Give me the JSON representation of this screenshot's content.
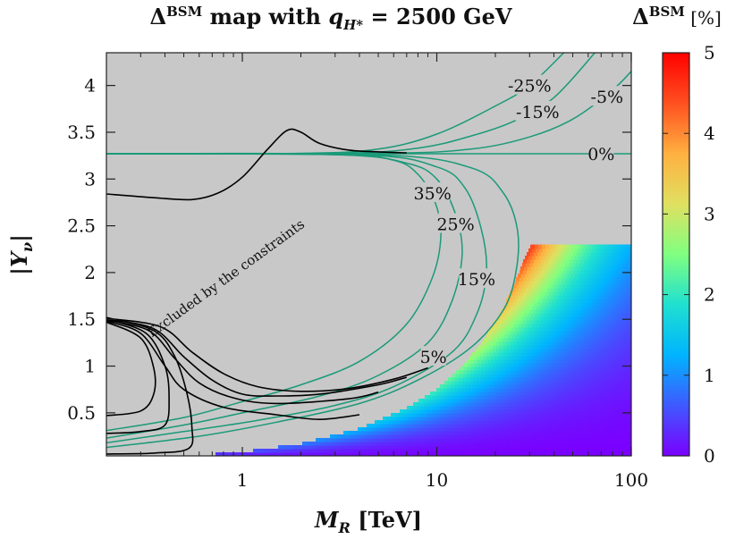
{
  "chart_data": {
    "type": "heatmap",
    "title": {
      "main": "Δ",
      "sup": "BSM",
      "rest": " map with ",
      "q": "q",
      "sub": "H*",
      "eq": " = 2500 GeV"
    },
    "xlabel": {
      "main": "M",
      "sub": "R",
      "rest": " [TeV]"
    },
    "ylabel": {
      "main": "|Y",
      "sub": "ν",
      "rest": "|"
    },
    "x_scale": "log",
    "xlim": [
      0.2,
      100
    ],
    "ylim": [
      0.04,
      4.35
    ],
    "x_ticks": [
      {
        "v": 1,
        "label": "1"
      },
      {
        "v": 10,
        "label": "10"
      },
      {
        "v": 100,
        "label": "100"
      }
    ],
    "y_ticks": [
      {
        "v": 0.5,
        "label": "0.5"
      },
      {
        "v": 1,
        "label": "1"
      },
      {
        "v": 1.5,
        "label": "1.5"
      },
      {
        "v": 2,
        "label": "2"
      },
      {
        "v": 2.5,
        "label": "2.5"
      },
      {
        "v": 3,
        "label": "3"
      },
      {
        "v": 3.5,
        "label": "3.5"
      },
      {
        "v": 4,
        "label": "4"
      }
    ],
    "colorbar": {
      "label": {
        "main": "Δ",
        "sup": "BSM",
        "rest": " [%]"
      },
      "range": [
        0,
        5
      ],
      "ticks": [
        {
          "v": 0,
          "label": "0"
        },
        {
          "v": 1,
          "label": "1"
        },
        {
          "v": 2,
          "label": "2"
        },
        {
          "v": 3,
          "label": "3"
        },
        {
          "v": 4,
          "label": "4"
        },
        {
          "v": 5,
          "label": "5"
        }
      ],
      "colors": [
        "#7a00ff",
        "#3f59ff",
        "#00b4ff",
        "#1fe0d0",
        "#80ff80",
        "#e0e060",
        "#ffb040",
        "#ff5020",
        "#ff0000"
      ]
    },
    "allowed_region": {
      "boundary": [
        [
          0.55,
          0.04
        ],
        [
          1.0,
          0.08
        ],
        [
          2.0,
          0.17
        ],
        [
          4.0,
          0.33
        ],
        [
          7.0,
          0.55
        ],
        [
          10.0,
          0.75
        ],
        [
          14.0,
          1.02
        ],
        [
          18.0,
          1.32
        ],
        [
          22.0,
          1.62
        ],
        [
          26.0,
          1.95
        ],
        [
          29.0,
          2.2
        ],
        [
          31.0,
          2.3
        ]
      ],
      "y_top": 2.3,
      "x_right": 100
    },
    "excluded_label": "Excluded by the constraints",
    "contours_green": [
      {
        "label": "-25%",
        "label_at": [
          30,
          4.0
        ],
        "points": [
          [
            0.2,
            3.27
          ],
          [
            2,
            3.275
          ],
          [
            5,
            3.32
          ],
          [
            10,
            3.48
          ],
          [
            20,
            3.78
          ],
          [
            30,
            4.0
          ],
          [
            45,
            4.35
          ]
        ]
      },
      {
        "label": "-15%",
        "label_at": [
          33,
          3.72
        ],
        "points": [
          [
            0.2,
            3.27
          ],
          [
            3,
            3.275
          ],
          [
            8,
            3.33
          ],
          [
            15,
            3.46
          ],
          [
            25,
            3.62
          ],
          [
            40,
            3.87
          ],
          [
            65,
            4.35
          ]
        ]
      },
      {
        "label": "-5%",
        "label_at": [
          75,
          3.88
        ],
        "points": [
          [
            0.2,
            3.27
          ],
          [
            5,
            3.275
          ],
          [
            15,
            3.32
          ],
          [
            30,
            3.45
          ],
          [
            50,
            3.64
          ],
          [
            80,
            3.95
          ],
          [
            105,
            4.2
          ]
        ]
      },
      {
        "label": "0%",
        "label_at": [
          70,
          3.27
        ],
        "points": [
          [
            0.2,
            3.27
          ],
          [
            100,
            3.27
          ]
        ]
      },
      {
        "label": "35%",
        "label_at": [
          9.5,
          2.85
        ],
        "points": [
          [
            0.2,
            3.27
          ],
          [
            3,
            3.26
          ],
          [
            6,
            3.2
          ],
          [
            8,
            3.05
          ],
          [
            9.8,
            2.75
          ],
          [
            10.5,
            2.4
          ],
          [
            9.5,
            1.95
          ],
          [
            7,
            1.45
          ],
          [
            4,
            1.05
          ],
          [
            2,
            0.8
          ],
          [
            1,
            0.62
          ],
          [
            0.5,
            0.45
          ],
          [
            0.2,
            0.31
          ]
        ]
      },
      {
        "label": "25%",
        "label_at": [
          12.5,
          2.52
        ],
        "points": [
          [
            0.2,
            3.27
          ],
          [
            3,
            3.26
          ],
          [
            7,
            3.17
          ],
          [
            10,
            3.0
          ],
          [
            12.5,
            2.62
          ],
          [
            13.5,
            2.2
          ],
          [
            12,
            1.7
          ],
          [
            9,
            1.25
          ],
          [
            5,
            0.9
          ],
          [
            2.5,
            0.68
          ],
          [
            1,
            0.5
          ],
          [
            0.5,
            0.37
          ],
          [
            0.2,
            0.23
          ]
        ]
      },
      {
        "label": "15%",
        "label_at": [
          16,
          1.93
        ],
        "points": [
          [
            0.2,
            3.27
          ],
          [
            4,
            3.26
          ],
          [
            10,
            3.13
          ],
          [
            14,
            2.9
          ],
          [
            17,
            2.45
          ],
          [
            18,
            2.0
          ],
          [
            16,
            1.55
          ],
          [
            12,
            1.15
          ],
          [
            6,
            0.78
          ],
          [
            3,
            0.58
          ],
          [
            1.2,
            0.42
          ],
          [
            0.5,
            0.3
          ],
          [
            0.2,
            0.18
          ]
        ]
      },
      {
        "label": "5%",
        "label_at": [
          9.6,
          1.1
        ],
        "points": [
          [
            0.2,
            3.27
          ],
          [
            5,
            3.26
          ],
          [
            15,
            3.12
          ],
          [
            22,
            2.85
          ],
          [
            26,
            2.45
          ],
          [
            25.5,
            2.0
          ],
          [
            22,
            1.6
          ],
          [
            15,
            1.2
          ],
          [
            8,
            0.85
          ],
          [
            4,
            0.6
          ],
          [
            1.5,
            0.4
          ],
          [
            0.6,
            0.25
          ],
          [
            0.2,
            0.13
          ]
        ]
      }
    ],
    "contours_black": [
      {
        "points": [
          [
            0.2,
            2.84
          ],
          [
            0.35,
            2.8
          ],
          [
            0.55,
            2.78
          ],
          [
            0.75,
            2.85
          ],
          [
            1.0,
            3.02
          ],
          [
            1.35,
            3.32
          ],
          [
            1.7,
            3.52
          ],
          [
            2.0,
            3.5
          ],
          [
            2.5,
            3.38
          ],
          [
            3.5,
            3.31
          ],
          [
            5,
            3.29
          ],
          [
            7,
            3.28
          ]
        ]
      },
      {
        "points": [
          [
            0.2,
            1.52
          ],
          [
            0.35,
            1.38
          ],
          [
            0.45,
            1.1
          ],
          [
            0.52,
            0.7
          ],
          [
            0.55,
            0.35
          ],
          [
            0.53,
            0.12
          ],
          [
            0.35,
            0.07
          ],
          [
            0.2,
            0.06
          ]
        ]
      },
      {
        "points": [
          [
            0.2,
            1.5
          ],
          [
            0.32,
            1.35
          ],
          [
            0.4,
            1.0
          ],
          [
            0.42,
            0.65
          ],
          [
            0.4,
            0.37
          ],
          [
            0.3,
            0.3
          ],
          [
            0.2,
            0.28
          ]
        ]
      },
      {
        "points": [
          [
            0.2,
            1.47
          ],
          [
            0.3,
            1.3
          ],
          [
            0.35,
            0.98
          ],
          [
            0.35,
            0.7
          ],
          [
            0.3,
            0.52
          ],
          [
            0.2,
            0.47
          ]
        ]
      },
      {
        "points": [
          [
            0.2,
            1.48
          ],
          [
            0.3,
            1.35
          ],
          [
            0.4,
            1.0
          ],
          [
            0.5,
            0.75
          ],
          [
            0.8,
            0.56
          ],
          [
            1.5,
            0.48
          ],
          [
            2.5,
            0.43
          ],
          [
            4,
            0.48
          ]
        ]
      },
      {
        "points": [
          [
            0.2,
            1.49
          ],
          [
            0.33,
            1.38
          ],
          [
            0.45,
            1.08
          ],
          [
            0.6,
            0.82
          ],
          [
            0.9,
            0.66
          ],
          [
            1.5,
            0.6
          ],
          [
            3.5,
            0.65
          ],
          [
            5,
            0.72
          ]
        ]
      },
      {
        "points": [
          [
            0.2,
            1.5
          ],
          [
            0.35,
            1.4
          ],
          [
            0.5,
            1.1
          ],
          [
            0.7,
            0.85
          ],
          [
            1.0,
            0.7
          ],
          [
            1.5,
            0.68
          ],
          [
            2.5,
            0.7
          ],
          [
            5,
            0.8
          ],
          [
            7,
            0.88
          ]
        ]
      },
      {
        "points": [
          [
            0.2,
            1.51
          ],
          [
            0.38,
            1.42
          ],
          [
            0.55,
            1.15
          ],
          [
            0.8,
            0.92
          ],
          [
            1.2,
            0.78
          ],
          [
            2.0,
            0.73
          ],
          [
            3.5,
            0.76
          ],
          [
            6,
            0.86
          ],
          [
            9,
            0.98
          ]
        ]
      }
    ]
  }
}
